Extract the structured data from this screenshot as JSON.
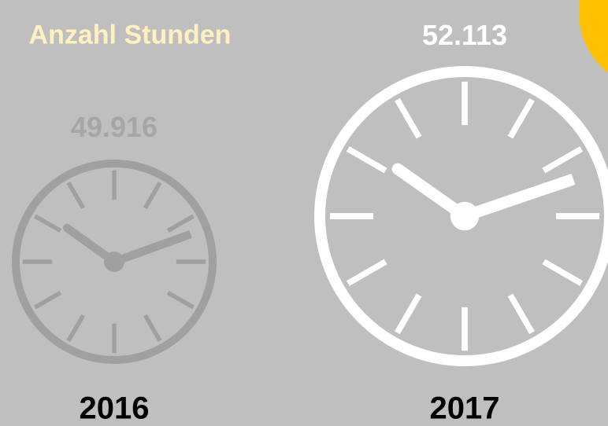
{
  "title": "Anzahl Stunden",
  "items": [
    {
      "year": "2016",
      "value": "49.916"
    },
    {
      "year": "2017",
      "value": "52.113"
    }
  ]
}
